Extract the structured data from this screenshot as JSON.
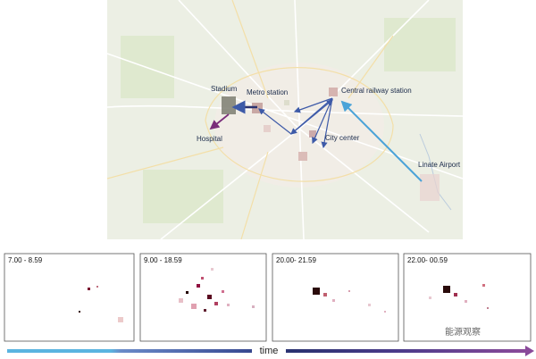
{
  "map": {
    "labels": {
      "stadium": "Stadium",
      "metro_station": "Metro station",
      "central_railway_station": "Central railway station",
      "hospital": "Hospital",
      "city_center": "City center",
      "linate_airport": "Linate Airport"
    }
  },
  "panels": [
    {
      "label": "7.00 - 8.59"
    },
    {
      "label": "9.00 - 18.59"
    },
    {
      "label": "20.00- 21.59"
    },
    {
      "label": "22.00- 00.59"
    }
  ],
  "timeline": {
    "label": "time"
  },
  "watermark": "能源观察"
}
